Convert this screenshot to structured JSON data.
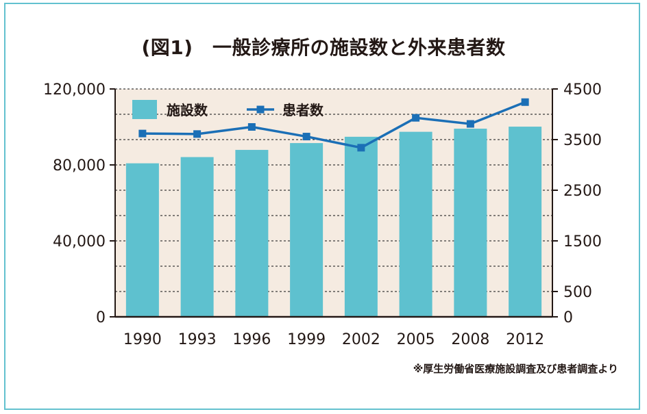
{
  "page": {
    "title": "(図1)　一般診療所の施設数と外来患者数",
    "note": "※厚生労働省医療施設調査及び患者調査より"
  },
  "colors": {
    "bar": "#5ec1cf",
    "line": "#1b6fb6",
    "plot_bg": "#f5ebe1",
    "border": "#62c1cf",
    "axis": "#231815"
  },
  "chart_data": {
    "type": "bar",
    "title": "(図1)　一般診療所の施設数と外来患者数",
    "categories": [
      "1990",
      "1993",
      "1996",
      "1999",
      "2002",
      "2005",
      "2008",
      "2012"
    ],
    "series": [
      {
        "name": "施設数",
        "type": "bar",
        "axis": "left",
        "values": [
          80852,
          84128,
          87909,
          91500,
          94819,
          97442,
          99083,
          100152
        ]
      },
      {
        "name": "患者数",
        "type": "line",
        "axis": "right",
        "values": [
          3620,
          3610,
          3750,
          3560,
          3340,
          3930,
          3810,
          4240
        ]
      }
    ],
    "y_left": {
      "ylim": [
        0,
        120000
      ],
      "ticks": [
        0,
        40000,
        80000,
        120000
      ],
      "tick_labels": [
        "0",
        "40,000",
        "80,000",
        "120,000"
      ]
    },
    "y_right": {
      "ylim": [
        0,
        4500
      ],
      "ticks": [
        0,
        500,
        1500,
        2500,
        3500,
        4500
      ],
      "tick_labels": [
        "0",
        "500",
        "1500",
        "2500",
        "3500",
        "4500"
      ]
    },
    "grid": true,
    "legend": "top-left"
  }
}
